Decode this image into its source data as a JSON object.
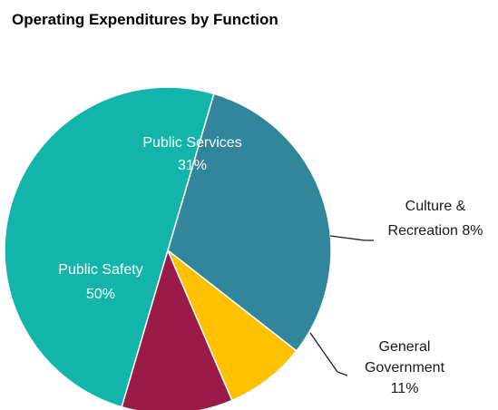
{
  "chart_data": {
    "type": "pie",
    "title": "Operating Expenditures by Function",
    "start_angle_deg": -38,
    "direction": "counterclockwise",
    "colors": {
      "Public Services": "#31869b",
      "Public Safety": "#13b5aa",
      "General Government": "#9b1b48",
      "Culture & Recreation": "#ffc000",
      "leader": "#1a1a1a"
    },
    "slices": [
      {
        "label": "Public Services",
        "value": 31,
        "value_label": "31%",
        "label_lines": [
          "Public Services",
          "31%"
        ],
        "label_position": "inside"
      },
      {
        "label": "Public Safety",
        "value": 50,
        "value_label": "50%",
        "label_lines": [
          "Public Safety",
          "50%"
        ],
        "label_position": "inside"
      },
      {
        "label": "General Government",
        "value": 11,
        "value_label": "11%",
        "label_lines": [
          "General",
          "Government",
          "11%"
        ],
        "label_position": "outside"
      },
      {
        "label": "Culture & Recreation",
        "value": 8,
        "value_label": "8%",
        "label_lines": [
          "Culture &",
          "Recreation 8%"
        ],
        "label_position": "outside"
      }
    ]
  }
}
